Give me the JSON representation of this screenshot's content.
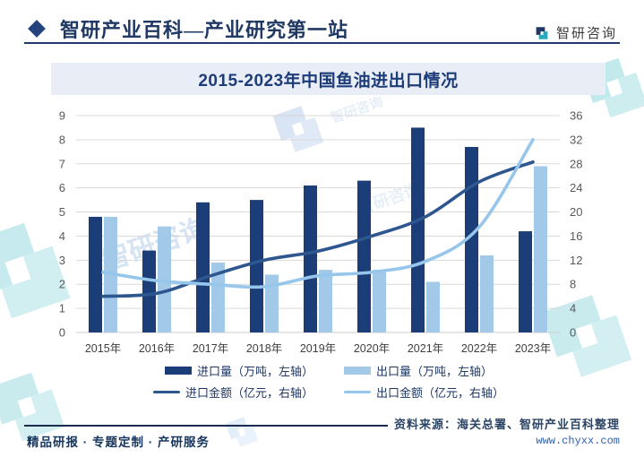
{
  "header": {
    "brand_title": "智研产业百科—产业研究第一站",
    "logo_text": "智研咨询"
  },
  "chart_data": {
    "type": "combo-bar-line",
    "title": "2015-2023年中国鱼油进出口情况",
    "categories": [
      "2015年",
      "2016年",
      "2017年",
      "2018年",
      "2019年",
      "2020年",
      "2021年",
      "2022年",
      "2023年"
    ],
    "series": [
      {
        "name": "进口量（万吨，左轴）",
        "type": "bar",
        "axis": "left",
        "color": "#1B3D78",
        "values": [
          4.8,
          3.4,
          5.4,
          5.5,
          6.1,
          6.3,
          8.5,
          7.7,
          4.2
        ]
      },
      {
        "name": "出口量（万吨，左轴）",
        "type": "bar",
        "axis": "left",
        "color": "#A3C9E9",
        "values": [
          4.8,
          4.4,
          2.9,
          2.4,
          2.6,
          2.6,
          2.1,
          3.2,
          6.9
        ]
      },
      {
        "name": "进口金额（亿元，右轴）",
        "type": "line",
        "axis": "right",
        "color": "#2E568F",
        "values": [
          6.0,
          6.5,
          9.4,
          12.0,
          13.5,
          16.0,
          19.2,
          25.0,
          28.3
        ]
      },
      {
        "name": "出口金额（亿元，右轴）",
        "type": "line",
        "axis": "right",
        "color": "#96C6EC",
        "values": [
          10.0,
          8.6,
          8.0,
          7.6,
          9.4,
          10.0,
          11.8,
          17.5,
          32.0
        ]
      }
    ],
    "left_axis": {
      "min": 0,
      "max": 9,
      "step": 1
    },
    "right_axis": {
      "min": 0,
      "max": 36,
      "step": 4
    },
    "grid": true,
    "legend_position": "bottom"
  },
  "footer": {
    "tagline": "精品研报 · 专题定制 · 产研服务",
    "source": "资料来源：海关总署、智研产业百科整理",
    "website": "www.chyxx.com"
  },
  "watermark": {
    "text": "智研咨询"
  },
  "colors": {
    "brand_navy": "#1F3864",
    "title_band_bg": "#E9EEF6",
    "grid": "#D9D9D9",
    "axis_label": "#595959",
    "x_label": "#404040",
    "watermark_teal": "#5FC6CE",
    "watermark_blue": "#A9C8EC"
  }
}
